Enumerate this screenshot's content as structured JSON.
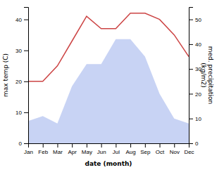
{
  "chart_data": {
    "type": "line",
    "categories": [
      "Jan",
      "Feb",
      "Mar",
      "Apr",
      "May",
      "Jun",
      "Jul",
      "Aug",
      "Sep",
      "Oct",
      "Nov",
      "Dec"
    ],
    "xlabel": "date (month)",
    "ylabel": "max temp (C)",
    "y2label": "med. precipitation\n(kg/m2)",
    "ylim": [
      0,
      44
    ],
    "yticks": [
      0,
      10,
      20,
      30,
      40
    ],
    "y2lim": [
      0,
      55
    ],
    "y2ticks": [
      0,
      10,
      20,
      30,
      40,
      50
    ],
    "series": [
      {
        "type": "area",
        "axis": "y2",
        "color": "#aabbee",
        "values": [
          9,
          11,
          8,
          23,
          32,
          32,
          42,
          42,
          35,
          20,
          10,
          8
        ]
      },
      {
        "type": "line",
        "color": "#cc4444",
        "values": [
          20,
          20,
          25,
          33,
          41,
          37,
          37,
          42,
          42,
          40,
          35,
          28
        ]
      }
    ]
  }
}
